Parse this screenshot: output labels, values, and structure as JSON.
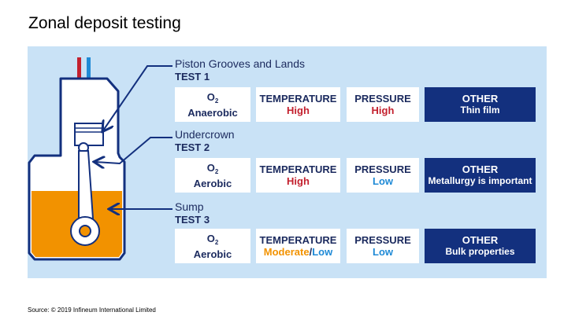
{
  "title": "Zonal deposit testing",
  "source": "Source: © 2019 Infineum International Limited",
  "colors": {
    "panel_bg": "#c9e2f6",
    "navy": "#1b2a5e",
    "dark_blue_card": "#13307e",
    "red": "#c3202e",
    "light_blue": "#1f8ad6",
    "orange": "#f29200",
    "oil": "#f29200"
  },
  "tests": [
    {
      "zone": "Piston Grooves and Lands",
      "test_label": "TEST 1",
      "o2_label": "O",
      "o2_sub": "2",
      "o2_value": "Anaerobic",
      "temperature_label": "TEMPERATURE",
      "temperature_value": "High",
      "pressure_label": "PRESSURE",
      "pressure_value": "High",
      "other_label": "OTHER",
      "other_value": "Thin film"
    },
    {
      "zone": "Undercrown",
      "test_label": "TEST 2",
      "o2_label": "O",
      "o2_sub": "2",
      "o2_value": "Aerobic",
      "temperature_label": "TEMPERATURE",
      "temperature_value": "High",
      "pressure_label": "PRESSURE",
      "pressure_value": "Low",
      "other_label": "OTHER",
      "other_value": "Metallurgy is important"
    },
    {
      "zone": "Sump",
      "test_label": "TEST 3",
      "o2_label": "O",
      "o2_sub": "2",
      "o2_value": "Aerobic",
      "temperature_label": "TEMPERATURE",
      "temperature_value_a": "Moderate",
      "temperature_value_sep": "/",
      "temperature_value_b": "Low",
      "pressure_label": "PRESSURE",
      "pressure_value": "Low",
      "other_label": "OTHER",
      "other_value": "Bulk properties"
    }
  ]
}
